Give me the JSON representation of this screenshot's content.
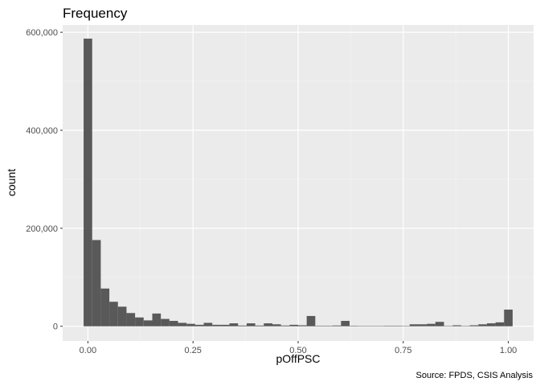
{
  "chart_data": {
    "type": "bar",
    "subtype": "histogram",
    "title": "Frequency",
    "xlabel": "pOffPSC",
    "ylabel": "count",
    "caption": "Source: FPDS, CSIS Analysis",
    "xlim": [
      -0.06,
      1.06
    ],
    "ylim": [
      -30000,
      615000
    ],
    "bin_width": 0.02041,
    "x_ticks": [
      0.0,
      0.25,
      0.5,
      0.75,
      1.0
    ],
    "x_tick_labels": [
      "0.00",
      "0.25",
      "0.50",
      "0.75",
      "1.00"
    ],
    "y_ticks": [
      0,
      200000,
      400000,
      600000
    ],
    "y_tick_labels": [
      "0",
      "200,000",
      "400,000",
      "600,000"
    ],
    "grid": true,
    "legend": "none",
    "bar_color": "#595959",
    "panel_color": "#ebebeb",
    "bins": {
      "x": [
        0.0,
        0.0204,
        0.0408,
        0.0612,
        0.0816,
        0.102,
        0.1224,
        0.1429,
        0.1633,
        0.1837,
        0.2041,
        0.2245,
        0.2449,
        0.2653,
        0.2857,
        0.3061,
        0.3265,
        0.3469,
        0.3673,
        0.3878,
        0.4082,
        0.4286,
        0.449,
        0.4694,
        0.4898,
        0.5102,
        0.5306,
        0.551,
        0.5714,
        0.5918,
        0.6122,
        0.6327,
        0.6531,
        0.6735,
        0.6939,
        0.7143,
        0.7347,
        0.7551,
        0.7755,
        0.7959,
        0.8163,
        0.8367,
        0.8571,
        0.8776,
        0.898,
        0.9184,
        0.9388,
        0.9592,
        0.9796,
        1.0
      ],
      "counts": [
        587000,
        176000,
        77000,
        50000,
        40000,
        27000,
        18000,
        12000,
        26000,
        15000,
        11000,
        7000,
        5000,
        3000,
        7000,
        3000,
        3000,
        6000,
        1500,
        6000,
        1500,
        6000,
        4000,
        1500,
        3000,
        2000,
        21000,
        1000,
        1000,
        1500,
        11000,
        1000,
        500,
        500,
        500,
        1000,
        1000,
        500,
        4000,
        4000,
        5000,
        9000,
        500,
        2000,
        500,
        2000,
        4000,
        6000,
        8000,
        34000
      ]
    }
  }
}
